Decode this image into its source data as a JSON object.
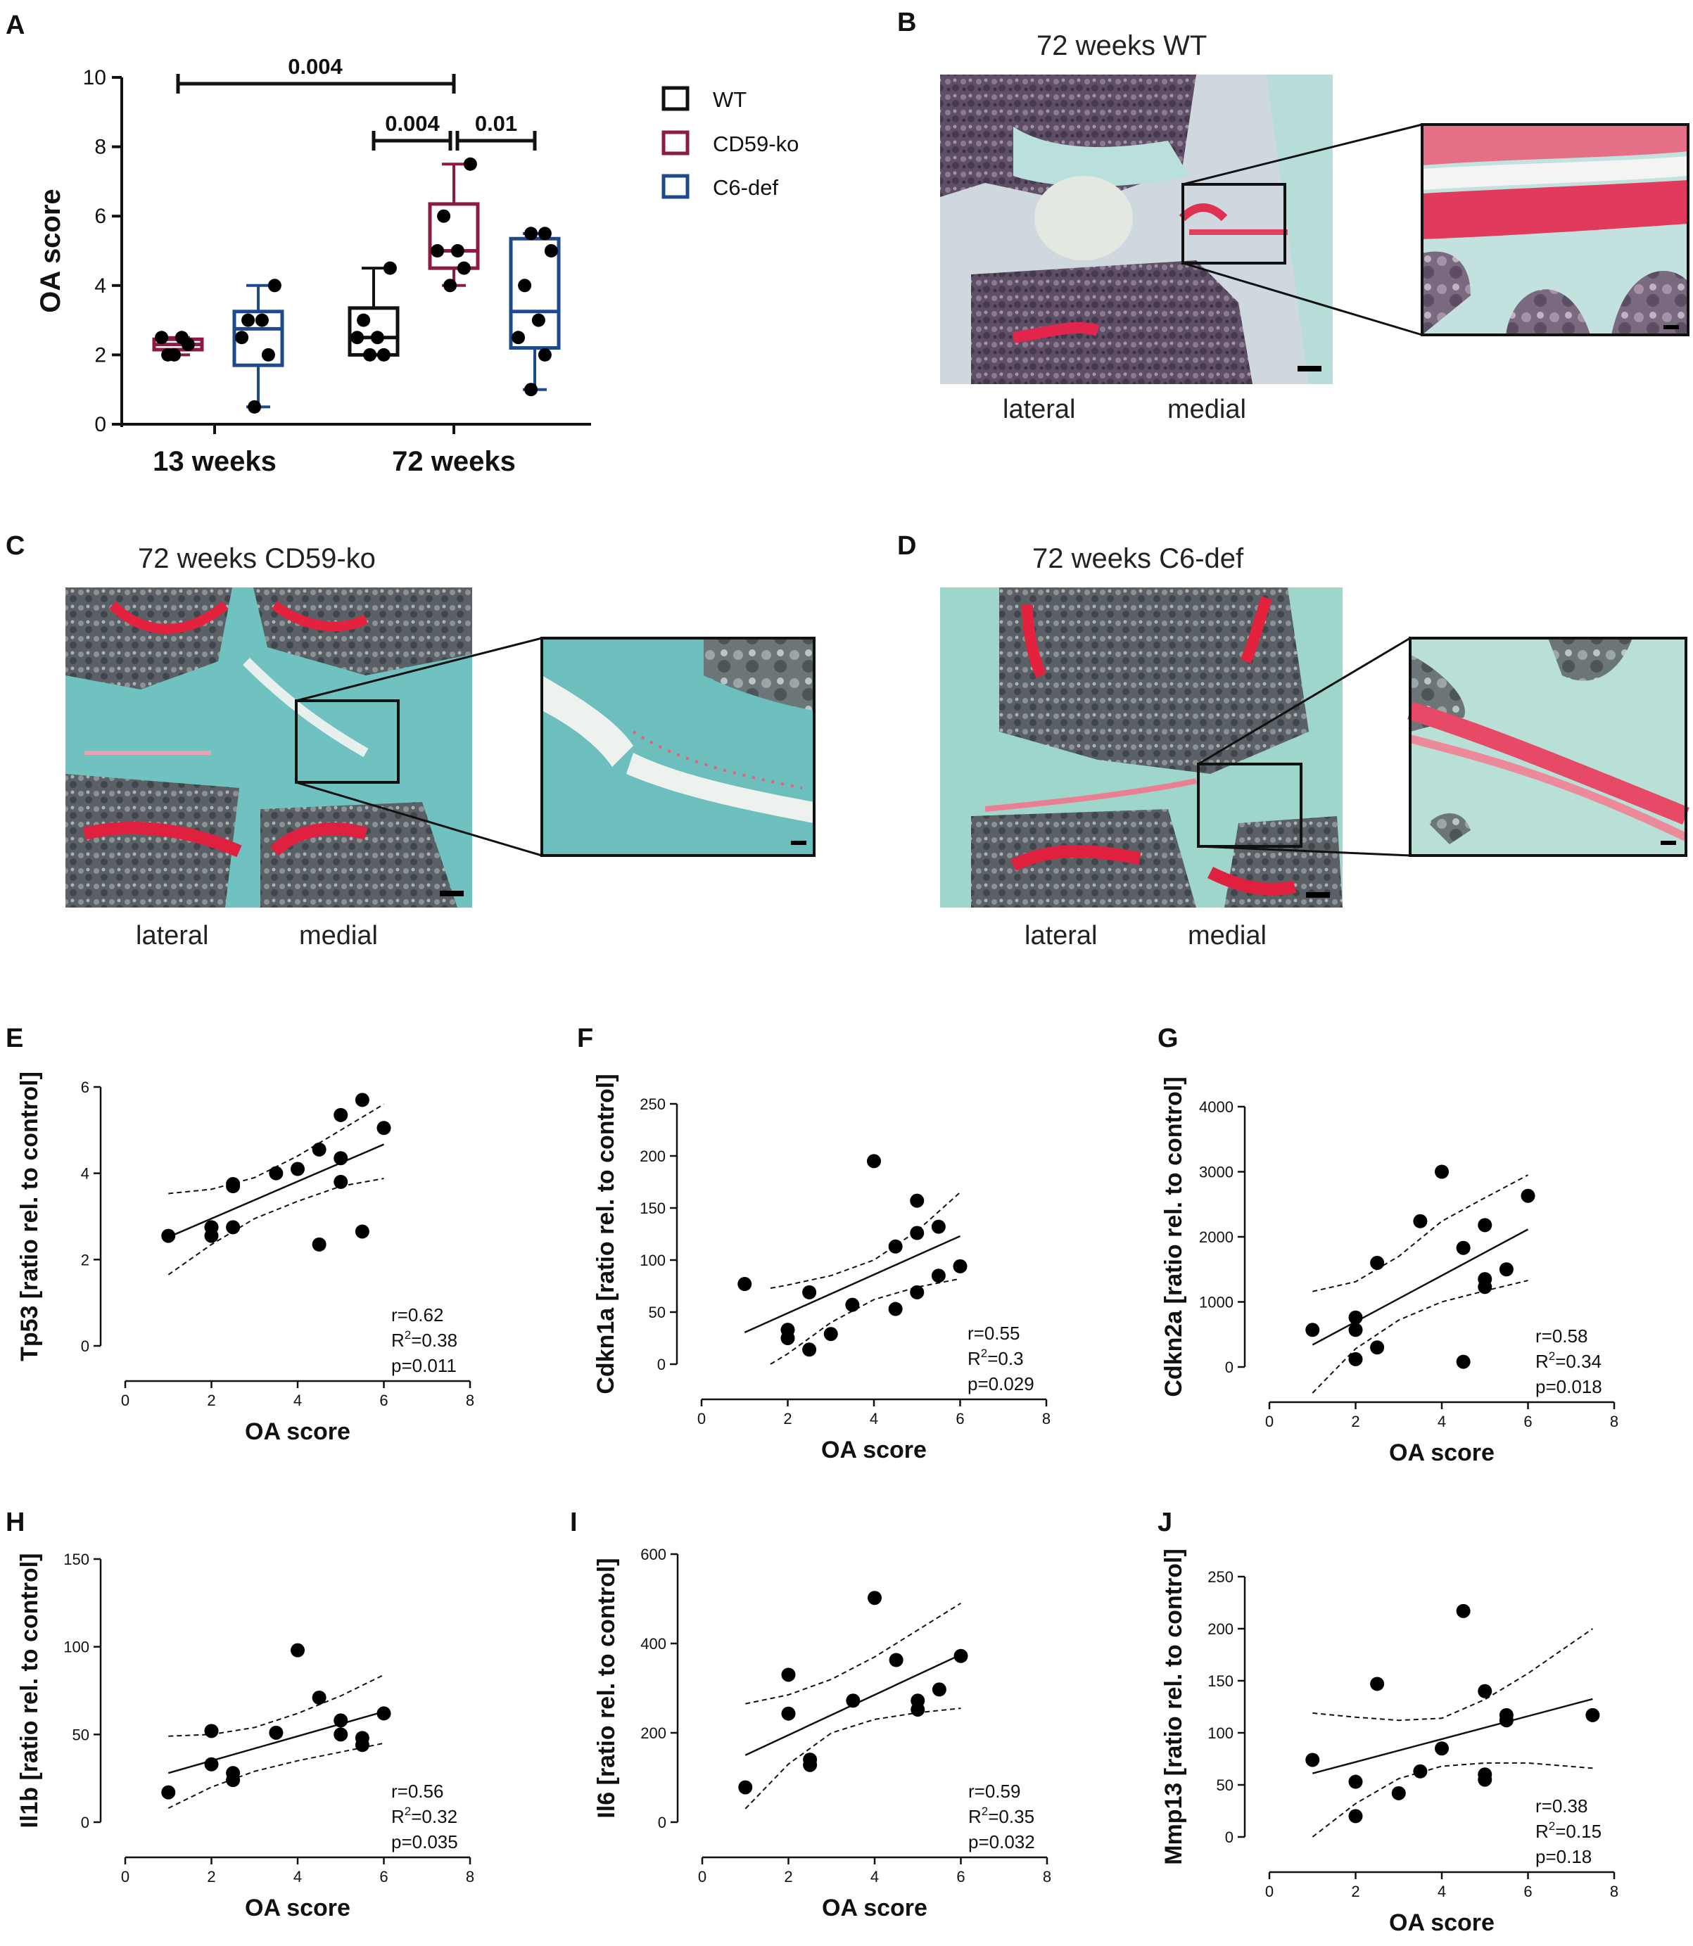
{
  "panel_letters": [
    "A",
    "B",
    "C",
    "D",
    "E",
    "F",
    "G",
    "H",
    "I",
    "J"
  ],
  "colors": {
    "wt": "#111111",
    "cd59": "#8b1a45",
    "c6": "#1e4a8c",
    "dot": "#000000"
  },
  "histology": [
    {
      "title": "72 weeks WT",
      "lateral": "lateral",
      "medial": "medial"
    },
    {
      "title": "72 weeks CD59-ko",
      "lateral": "lateral",
      "medial": "medial"
    },
    {
      "title": "72 weeks C6-def",
      "lateral": "lateral",
      "medial": "medial"
    }
  ],
  "chart_data": [
    {
      "panel": "A",
      "type": "box",
      "ylabel": "OA score",
      "ylim": [
        0,
        10
      ],
      "yticks": [
        0,
        2,
        4,
        6,
        8,
        10
      ],
      "groups": [
        "13 weeks",
        "72 weeks"
      ],
      "legend": [
        "WT",
        "CD59-ko",
        "C6-def"
      ],
      "significance": [
        {
          "label": "0.004",
          "from": "13 weeks CD59-ko",
          "to": "72 weeks CD59-ko"
        },
        {
          "label": "0.004",
          "from": "72 weeks WT",
          "to": "72 weeks CD59-ko"
        },
        {
          "label": "0.01",
          "from": "72 weeks CD59-ko",
          "to": "72 weeks C6-def"
        }
      ],
      "boxes": [
        {
          "group": "13 weeks",
          "series": "CD59-ko",
          "min": 2.0,
          "q1": 2.15,
          "median": 2.3,
          "q3": 2.45,
          "max": 2.5,
          "points": [
            2.0,
            2.3,
            2.5,
            2.5,
            2.0
          ]
        },
        {
          "group": "13 weeks",
          "series": "C6-def",
          "min": 0.5,
          "q1": 1.7,
          "median": 2.75,
          "q3": 3.25,
          "max": 4.0,
          "points": [
            0.5,
            2.0,
            2.5,
            3.0,
            3.0,
            4.0
          ]
        },
        {
          "group": "72 weeks",
          "series": "WT",
          "min": 2.0,
          "q1": 2.0,
          "median": 2.5,
          "q3": 3.35,
          "max": 4.5,
          "points": [
            2.0,
            2.0,
            2.5,
            2.5,
            3.0,
            4.5
          ]
        },
        {
          "group": "72 weeks",
          "series": "CD59-ko",
          "min": 4.0,
          "q1": 4.5,
          "median": 5.0,
          "q3": 6.35,
          "max": 7.5,
          "points": [
            4.0,
            4.5,
            5.0,
            5.0,
            6.0,
            7.5
          ]
        },
        {
          "group": "72 weeks",
          "series": "C6-def",
          "min": 1.0,
          "q1": 2.2,
          "median": 3.25,
          "q3": 5.35,
          "max": 5.5,
          "points": [
            1.0,
            2.0,
            2.5,
            3.0,
            4.0,
            5.0,
            5.5,
            5.5
          ]
        }
      ]
    },
    {
      "panel": "E",
      "type": "scatter",
      "xlabel": "OA score",
      "ylabel": "Tp53 [ratio rel. to control]",
      "xlim": [
        0,
        8
      ],
      "ylim": [
        0,
        6
      ],
      "xticks": [
        0,
        2,
        4,
        6,
        8
      ],
      "yticks": [
        0,
        2,
        4,
        6
      ],
      "x": [
        1,
        2,
        2,
        2.5,
        2.5,
        2.5,
        3.5,
        4,
        4.5,
        4.5,
        5,
        5,
        5,
        5.5,
        5.5,
        6
      ],
      "y": [
        2.55,
        2.55,
        2.75,
        2.75,
        3.7,
        3.75,
        4.0,
        4.1,
        2.35,
        4.55,
        3.8,
        4.35,
        5.35,
        2.65,
        5.7,
        5.05
      ],
      "fit": {
        "slope": 0.43,
        "intercept": 2.09
      },
      "ci": {
        "x": [
          1,
          2,
          3,
          4,
          5,
          6
        ],
        "lower": [
          1.65,
          2.35,
          2.95,
          3.35,
          3.7,
          3.88
        ],
        "upper": [
          3.53,
          3.63,
          3.9,
          4.4,
          5.0,
          5.6
        ]
      },
      "stats": {
        "r": "r=0.62",
        "r2_prefix": "R",
        "r2_sup": "2",
        "r2_value": "=0.38",
        "p": "p=0.011"
      }
    },
    {
      "panel": "F",
      "type": "scatter",
      "xlabel": "OA score",
      "ylabel": "Cdkn1a [ratio rel. to control]",
      "xlim": [
        0,
        8
      ],
      "ylim": [
        0,
        250
      ],
      "xticks": [
        0,
        2,
        4,
        6,
        8
      ],
      "yticks": [
        0,
        50,
        100,
        150,
        200,
        250
      ],
      "x": [
        1,
        2,
        2,
        2.5,
        2.5,
        3,
        3.5,
        4,
        4.5,
        4.5,
        5,
        5,
        5,
        5.5,
        5.5,
        6
      ],
      "y": [
        77,
        25,
        33,
        14,
        69,
        29,
        57,
        195,
        53,
        113,
        69,
        126,
        157,
        85,
        132,
        94
      ],
      "fit": {
        "slope": 18.5,
        "intercept": 12
      },
      "ci": {
        "x": [
          1.6,
          2,
          3,
          4,
          5,
          6
        ],
        "lower": [
          0,
          10,
          40,
          62,
          74,
          82
        ],
        "upper": [
          73,
          76,
          85,
          100,
          128,
          165
        ]
      },
      "stats": {
        "r": "r=0.55",
        "r2_prefix": "R",
        "r2_sup": "2",
        "r2_value": "=0.3",
        "p": "p=0.029"
      }
    },
    {
      "panel": "G",
      "type": "scatter",
      "xlabel": "OA score",
      "ylabel": "Cdkn2a [ratio rel. to control]",
      "xlim": [
        0,
        8
      ],
      "ylim": [
        0,
        4000
      ],
      "xticks": [
        0,
        2,
        4,
        6,
        8
      ],
      "yticks": [
        0,
        1000,
        2000,
        3000,
        4000
      ],
      "x": [
        1,
        2,
        2,
        2,
        2.5,
        2.5,
        3.5,
        4,
        4.5,
        4.5,
        5,
        5,
        5,
        5.5,
        6
      ],
      "y": [
        570,
        120,
        570,
        760,
        300,
        1600,
        2240,
        3000,
        80,
        1830,
        1230,
        1350,
        2180,
        1500,
        2630
      ],
      "fit": {
        "slope": 355,
        "intercept": -15
      },
      "ci": {
        "x": [
          1,
          2,
          3,
          4,
          5,
          6
        ],
        "lower": [
          -400,
          280,
          720,
          1000,
          1170,
          1330
        ],
        "upper": [
          1160,
          1310,
          1700,
          2240,
          2600,
          2950
        ]
      },
      "stats": {
        "r": "r=0.58",
        "r2_prefix": "R",
        "r2_sup": "2",
        "r2_value": "=0.34",
        "p": "p=0.018"
      }
    },
    {
      "panel": "H",
      "type": "scatter",
      "xlabel": "OA score",
      "ylabel": "Il1b [ratio rel. to control]",
      "xlim": [
        0,
        8
      ],
      "ylim": [
        0,
        150
      ],
      "xticks": [
        0,
        2,
        4,
        6,
        8
      ],
      "yticks": [
        0,
        50,
        100,
        150
      ],
      "x": [
        1,
        2,
        2,
        2.5,
        2.5,
        3.5,
        4,
        4.5,
        5,
        5,
        5.5,
        5.5,
        6
      ],
      "y": [
        17,
        52,
        33,
        24,
        28,
        51,
        98,
        71,
        50,
        58,
        44,
        48,
        62
      ],
      "fit": {
        "slope": 7,
        "intercept": 21
      },
      "ci": {
        "x": [
          1,
          2,
          3,
          4,
          5,
          6
        ],
        "lower": [
          8,
          20,
          29,
          35,
          40,
          45
        ],
        "upper": [
          49,
          50,
          54,
          62,
          72,
          84
        ]
      },
      "stats": {
        "r": "r=0.56",
        "r2_prefix": "R",
        "r2_sup": "2",
        "r2_value": "=0.32",
        "p": "p=0.035"
      }
    },
    {
      "panel": "I",
      "type": "scatter",
      "xlabel": "OA score",
      "ylabel": "Il6 [ratio rel. to control]",
      "xlim": [
        0,
        8
      ],
      "ylim": [
        0,
        600
      ],
      "xticks": [
        0,
        2,
        4,
        6,
        8
      ],
      "yticks": [
        0,
        200,
        400,
        600
      ],
      "x": [
        1,
        2,
        2,
        2.5,
        2.5,
        3.5,
        4,
        4.5,
        5,
        5,
        5.5,
        6
      ],
      "y": [
        78,
        330,
        243,
        128,
        140,
        272,
        502,
        363,
        252,
        272,
        297,
        372
      ],
      "fit": {
        "slope": 45,
        "intercept": 105
      },
      "ci": {
        "x": [
          1,
          2,
          3,
          4,
          5,
          6
        ],
        "lower": [
          30,
          130,
          200,
          230,
          245,
          255
        ],
        "upper": [
          265,
          285,
          320,
          370,
          430,
          490
        ]
      },
      "stats": {
        "r": "r=0.59",
        "r2_prefix": "R",
        "r2_sup": "2",
        "r2_value": "=0.35",
        "p": "p=0.032"
      }
    },
    {
      "panel": "J",
      "type": "scatter",
      "xlabel": "OA score",
      "ylabel": "Mmp13 [ratio rel. to control]",
      "xlim": [
        0,
        8
      ],
      "ylim": [
        0,
        250
      ],
      "xticks": [
        0,
        2,
        4,
        6,
        8
      ],
      "yticks": [
        0,
        50,
        100,
        150,
        200,
        250
      ],
      "x": [
        1,
        2,
        2,
        2.5,
        3,
        3.5,
        4,
        4.5,
        5,
        5,
        5,
        5.5,
        5.5,
        7.5
      ],
      "y": [
        74,
        20,
        53,
        147,
        42,
        63,
        85,
        217,
        55,
        60,
        140,
        117,
        112,
        117
      ],
      "fit": {
        "slope": 11,
        "intercept": 50
      },
      "ci": {
        "x": [
          1,
          2,
          3,
          4,
          5,
          6,
          7.5
        ],
        "lower": [
          0,
          32,
          56,
          68,
          71,
          71,
          66
        ],
        "upper": [
          119,
          115,
          112,
          114,
          132,
          157,
          200
        ]
      },
      "stats": {
        "r": "r=0.38",
        "r2_prefix": "R",
        "r2_sup": "2",
        "r2_value": "=0.15",
        "p": "p=0.18"
      }
    }
  ]
}
